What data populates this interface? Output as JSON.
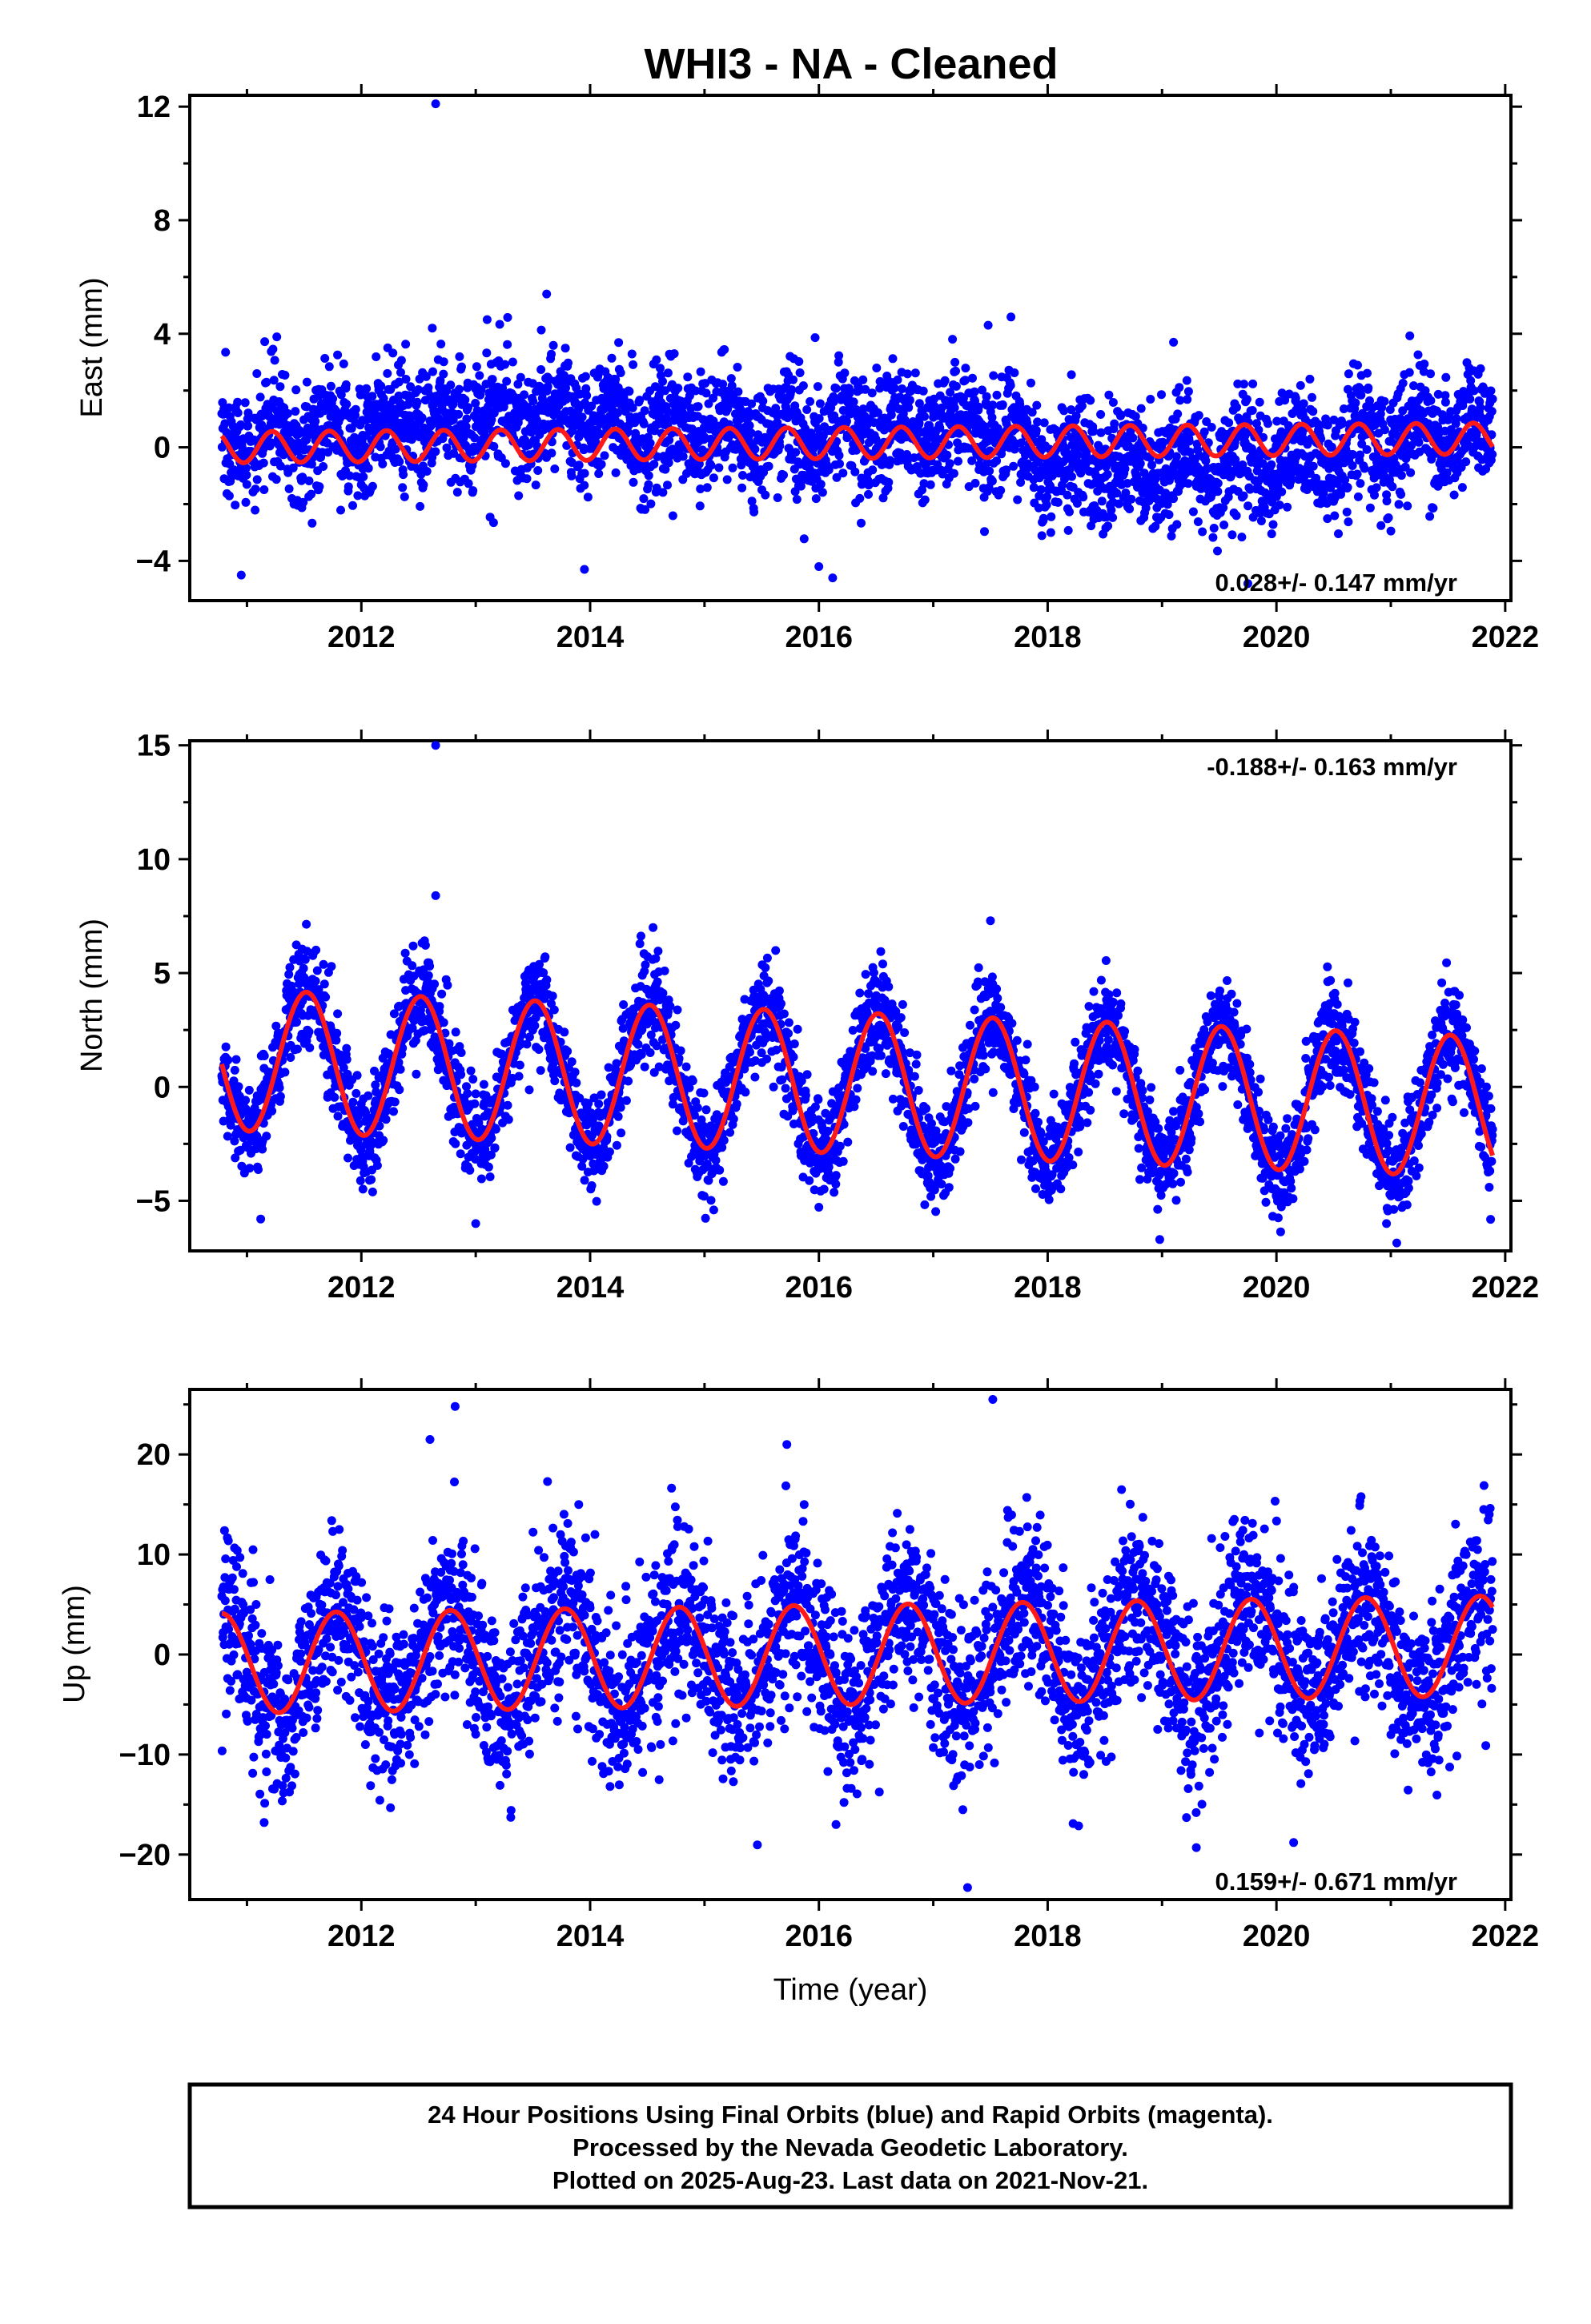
{
  "title": "WHI3  - NA - Cleaned",
  "colors": {
    "points": "#0000ff",
    "fit": "#ff1a1a",
    "frame": "#000000",
    "background": "#ffffff"
  },
  "footer": {
    "line1": "24 Hour Positions Using Final Orbits (blue) and Rapid Orbits (magenta).",
    "line2": "Processed by the Nevada Geodetic Laboratory.",
    "line3": "Plotted on 2025-Aug-23. Last data on 2021-Nov-21."
  },
  "chart_data": [
    {
      "type": "scatter",
      "component": "East",
      "ylabel": "East (mm)",
      "xlabel": "",
      "xlim": [
        2010.5,
        2022.05
      ],
      "ylim": [
        -5.4,
        12.4
      ],
      "xticks": [
        2012,
        2014,
        2016,
        2018,
        2020,
        2022
      ],
      "yticks": [
        -4,
        0,
        4,
        8,
        12
      ],
      "ytick_labels": [
        "−4",
        "0",
        "4",
        "8",
        "12"
      ],
      "rate_label": "0.028+/- 0.147 mm/yr",
      "rate_position": "bottom-right",
      "data_start": 2010.78,
      "data_end": 2021.89,
      "point_count": 3700,
      "daily_scatter_mm": 1.05,
      "fit": {
        "name": "model",
        "offset": 0.0,
        "trend_mm_per_yr": 0.028,
        "annual": [
          {
            "x": 2010.78,
            "y": 0.1
          },
          {
            "x": 2015.0,
            "y": 0.1
          },
          {
            "x": 2021.89,
            "y": 0.25
          }
        ],
        "semiannual_amplitude": 0.55,
        "semiannual_peak": 2011.22
      },
      "outliers": [
        {
          "x": 2012.65,
          "y": 12.1
        },
        {
          "x": 2013.62,
          "y": 5.4
        },
        {
          "x": 2012.62,
          "y": 4.2
        },
        {
          "x": 2017.48,
          "y": 4.3
        },
        {
          "x": 2013.1,
          "y": 4.5
        },
        {
          "x": 2019.1,
          "y": 3.7
        },
        {
          "x": 2010.95,
          "y": -4.5
        },
        {
          "x": 2013.95,
          "y": -4.3
        },
        {
          "x": 2016.12,
          "y": -4.6
        },
        {
          "x": 2016.0,
          "y": -4.2
        },
        {
          "x": 2019.75,
          "y": -4.8
        }
      ],
      "seasonal_shift": [
        {
          "x": 2011.0,
          "y": 0.2
        },
        {
          "x": 2013.1,
          "y": 0.9
        },
        {
          "x": 2013.55,
          "y": 1.1
        },
        {
          "x": 2015.6,
          "y": 0.3
        },
        {
          "x": 2017.4,
          "y": 0.6
        },
        {
          "x": 2018.0,
          "y": -0.7
        },
        {
          "x": 2019.8,
          "y": -0.8
        },
        {
          "x": 2021.6,
          "y": 0.3
        }
      ]
    },
    {
      "type": "scatter",
      "component": "North",
      "ylabel": "North (mm)",
      "xlabel": "",
      "xlim": [
        2010.5,
        2022.05
      ],
      "ylim": [
        -7.2,
        15.2
      ],
      "xticks": [
        2012,
        2014,
        2016,
        2018,
        2020,
        2022
      ],
      "yticks": [
        -5,
        0,
        5,
        10,
        15
      ],
      "ytick_labels": [
        "−5",
        "0",
        "5",
        "10",
        "15"
      ],
      "rate_label": "-0.188+/- 0.163 mm/yr",
      "rate_position": "top-right",
      "data_start": 2010.78,
      "data_end": 2021.89,
      "point_count": 3700,
      "daily_scatter_mm": 1.1,
      "fit": {
        "name": "model",
        "offset": 1.2,
        "trend_mm_per_yr": -0.188,
        "annual_amplitude": 3.1,
        "annual_peak": 2011.52,
        "semiannual_amplitude": 0.0,
        "semiannual_peak": 2011.0
      },
      "outliers": [
        {
          "x": 2012.65,
          "y": 15.0
        },
        {
          "x": 2012.65,
          "y": 8.4
        },
        {
          "x": 2017.5,
          "y": 7.3
        },
        {
          "x": 2014.55,
          "y": 7.0
        },
        {
          "x": 2018.98,
          "y": -6.7
        },
        {
          "x": 2013.0,
          "y": -6.0
        },
        {
          "x": 2011.12,
          "y": -5.8
        }
      ]
    },
    {
      "type": "scatter",
      "component": "Up",
      "ylabel": "Up (mm)",
      "xlabel": "Time (year)",
      "xlim": [
        2010.5,
        2022.05
      ],
      "ylim": [
        -24.5,
        26.5
      ],
      "xticks": [
        2012,
        2014,
        2016,
        2018,
        2020,
        2022
      ],
      "yticks": [
        -20,
        -10,
        0,
        10,
        20
      ],
      "ytick_labels": [
        "−20",
        "−10",
        "0",
        "10",
        "20"
      ],
      "rate_label": "0.159+/- 0.671 mm/yr",
      "rate_position": "bottom-right",
      "data_start": 2010.78,
      "data_end": 2021.89,
      "point_count": 3700,
      "daily_scatter_mm": 4.3,
      "fit": {
        "name": "model",
        "offset": -0.9,
        "trend_mm_per_yr": 0.159,
        "annual_amplitude": 5.0,
        "annual_peak": 2011.78,
        "semiannual_amplitude": 0.0,
        "semiannual_peak": 2011.0
      },
      "outliers": [
        {
          "x": 2017.52,
          "y": 25.5
        },
        {
          "x": 2012.82,
          "y": 24.8
        },
        {
          "x": 2015.72,
          "y": 21.0
        },
        {
          "x": 2012.6,
          "y": 21.5
        },
        {
          "x": 2017.3,
          "y": -23.3
        },
        {
          "x": 2011.15,
          "y": -16.8
        },
        {
          "x": 2019.3,
          "y": -19.3
        },
        {
          "x": 2020.15,
          "y": -18.8
        },
        {
          "x": 2016.15,
          "y": -17.0
        }
      ]
    }
  ]
}
